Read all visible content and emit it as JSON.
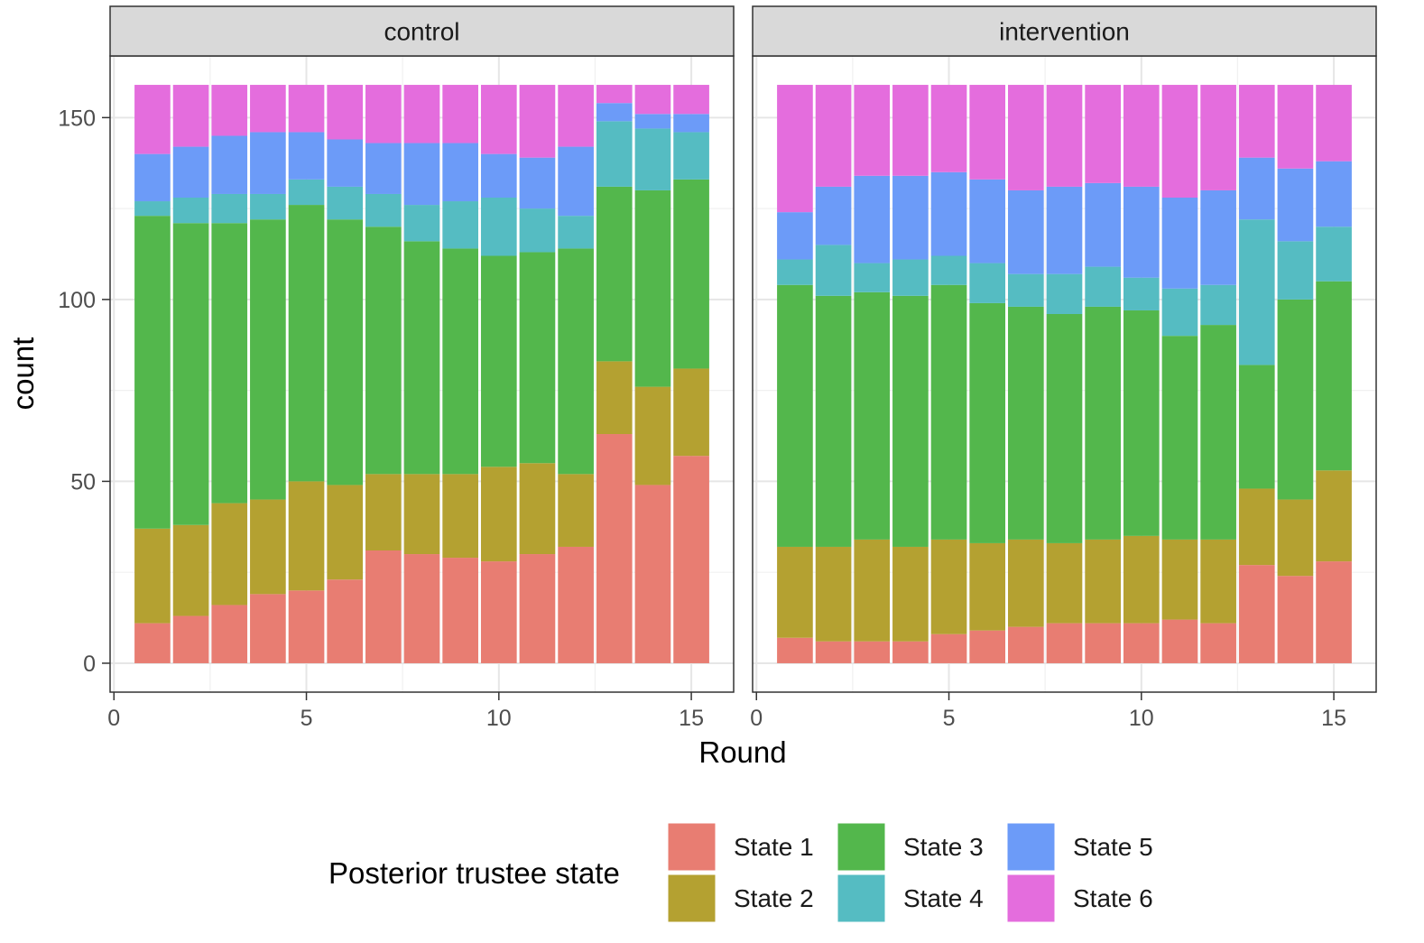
{
  "chart_data": {
    "type": "bar",
    "stacked": true,
    "facet_labels": [
      "control",
      "intervention"
    ],
    "xlabel": "Round",
    "ylabel": "count",
    "x_ticks": [
      0,
      5,
      10,
      15
    ],
    "y_ticks": [
      0,
      50,
      100,
      150
    ],
    "xlim": [
      -0.1,
      16.1
    ],
    "ylim": [
      -7.95,
      166.95
    ],
    "grid": true,
    "legend": {
      "title": "Posterior trustee state",
      "position": "bottom",
      "entries": [
        "State 1",
        "State 2",
        "State 3",
        "State 4",
        "State 5",
        "State 6"
      ],
      "colors": [
        "#E87D72",
        "#B4A131",
        "#53B74C",
        "#55BCC2",
        "#6C9BF8",
        "#E46DDD"
      ]
    },
    "x": [
      1,
      2,
      3,
      4,
      5,
      6,
      7,
      8,
      9,
      10,
      11,
      12,
      13,
      14,
      15
    ],
    "facets": [
      {
        "label": "control",
        "series": [
          {
            "name": "State 1",
            "values": [
              11,
              13,
              16,
              19,
              20,
              23,
              31,
              30,
              29,
              28,
              30,
              32,
              63,
              49,
              57
            ]
          },
          {
            "name": "State 2",
            "values": [
              26,
              25,
              28,
              26,
              30,
              26,
              21,
              22,
              23,
              26,
              25,
              20,
              20,
              27,
              24
            ]
          },
          {
            "name": "State 3",
            "values": [
              86,
              83,
              77,
              77,
              76,
              73,
              68,
              64,
              62,
              58,
              58,
              62,
              48,
              54,
              52
            ]
          },
          {
            "name": "State 4",
            "values": [
              4,
              7,
              8,
              7,
              7,
              9,
              9,
              10,
              13,
              16,
              12,
              9,
              18,
              17,
              13
            ]
          },
          {
            "name": "State 5",
            "values": [
              13,
              14,
              16,
              17,
              13,
              13,
              14,
              17,
              16,
              12,
              14,
              19,
              5,
              4,
              5
            ]
          },
          {
            "name": "State 6",
            "values": [
              19,
              17,
              14,
              13,
              13,
              15,
              16,
              16,
              16,
              19,
              20,
              17,
              5,
              8,
              8
            ]
          }
        ]
      },
      {
        "label": "intervention",
        "series": [
          {
            "name": "State 1",
            "values": [
              7,
              6,
              6,
              6,
              8,
              9,
              10,
              11,
              11,
              11,
              12,
              11,
              27,
              24,
              28
            ]
          },
          {
            "name": "State 2",
            "values": [
              25,
              26,
              28,
              26,
              26,
              24,
              24,
              22,
              23,
              24,
              22,
              23,
              21,
              21,
              25
            ]
          },
          {
            "name": "State 3",
            "values": [
              72,
              69,
              68,
              69,
              70,
              66,
              64,
              63,
              64,
              62,
              56,
              59,
              34,
              55,
              52
            ]
          },
          {
            "name": "State 4",
            "values": [
              7,
              14,
              8,
              10,
              8,
              11,
              9,
              11,
              11,
              9,
              13,
              11,
              40,
              16,
              15
            ]
          },
          {
            "name": "State 5",
            "values": [
              13,
              16,
              24,
              23,
              23,
              23,
              23,
              24,
              23,
              25,
              25,
              26,
              17,
              20,
              18
            ]
          },
          {
            "name": "State 6",
            "values": [
              35,
              28,
              25,
              25,
              24,
              26,
              29,
              28,
              27,
              28,
              31,
              29,
              20,
              23,
              21
            ]
          }
        ]
      }
    ]
  }
}
